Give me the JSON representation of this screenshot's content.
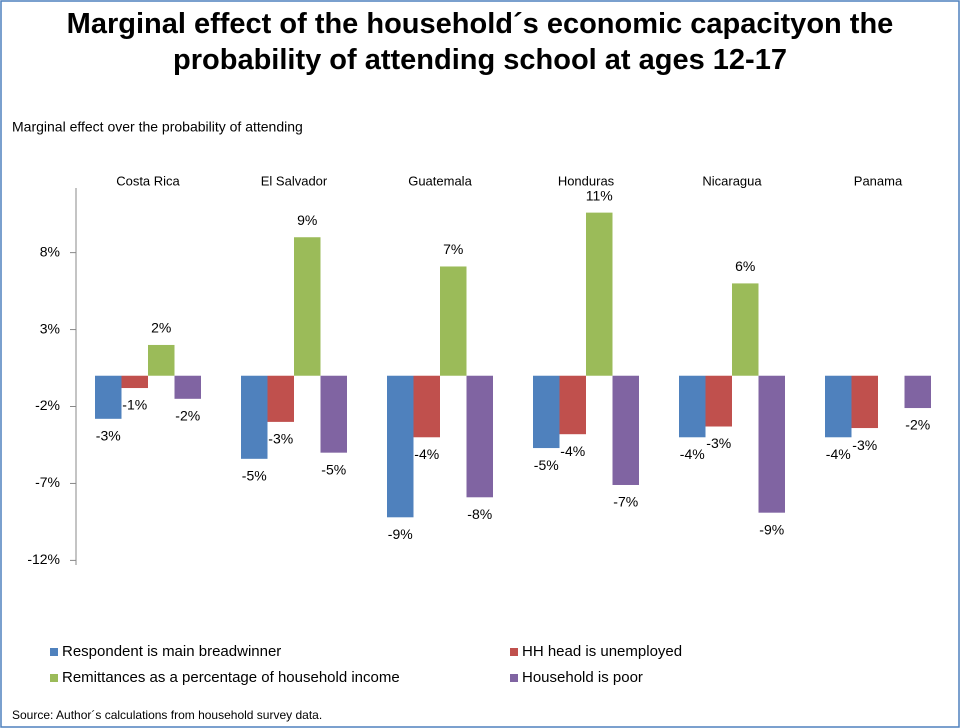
{
  "chart_data": {
    "type": "bar",
    "title": "Marginal effect of the household´s economic capacityon the probability of attending school at ages 12-17",
    "y_label": "Marginal effect over the probability of attending",
    "source": "Source: Author´s calculations from household survey data.",
    "categories": [
      "Costa Rica",
      "El Salvador",
      "Guatemala",
      "Honduras",
      "Nicaragua",
      "Panama"
    ],
    "series": [
      {
        "name": "Respondent is main breadwinner",
        "color": "#4f81bd",
        "values": [
          -2.8,
          -5.4,
          -9.2,
          -4.7,
          -4.0,
          -4.0
        ],
        "value_labels": [
          "-3%",
          "-5%",
          "-9%",
          "-5%",
          "-4%",
          "-4%"
        ]
      },
      {
        "name": "HH head is unemployed",
        "color": "#c0504d",
        "values": [
          -0.8,
          -3.0,
          -4.0,
          -3.8,
          -3.3,
          -3.4
        ],
        "value_labels": [
          "-1%",
          "-3%",
          "-4%",
          "-4%",
          "-3%",
          "-3%"
        ]
      },
      {
        "name": "Remittances as a percentage of household income",
        "color": "#9bbb59",
        "values": [
          2.0,
          9.0,
          7.1,
          10.6,
          6.0,
          null
        ],
        "value_labels": [
          "2%",
          "9%",
          "7%",
          "11%",
          "6%",
          null
        ]
      },
      {
        "name": "Household is poor",
        "color": "#8064a2",
        "values": [
          -1.5,
          -5.0,
          -7.9,
          -7.1,
          -8.9,
          -2.1
        ],
        "value_labels": [
          "-2%",
          "-5%",
          "-8%",
          "-7%",
          "-9%",
          "-2%"
        ]
      }
    ],
    "ylim": [
      -12.3,
      12.2
    ],
    "yticks": [
      {
        "value": 8,
        "label": "8%"
      },
      {
        "value": 3,
        "label": "3%"
      },
      {
        "value": -2,
        "label": "-2%"
      },
      {
        "value": -7,
        "label": "-7%"
      },
      {
        "value": -12,
        "label": "-12%"
      }
    ],
    "legend": "bottom"
  }
}
